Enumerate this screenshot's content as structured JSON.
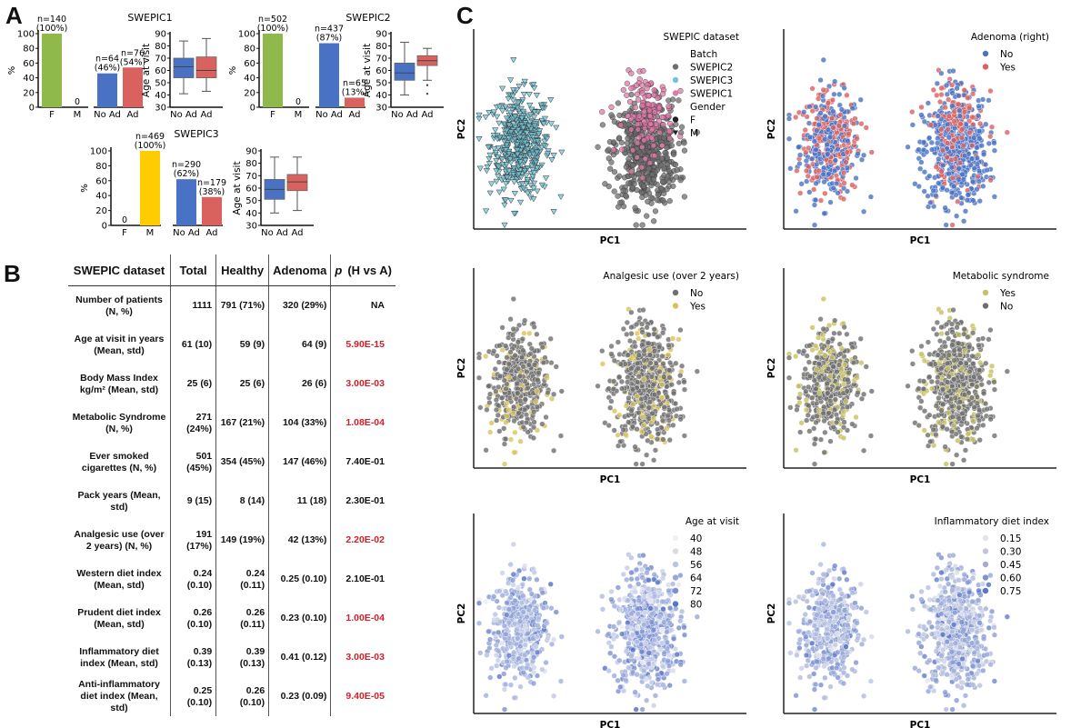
{
  "panels": {
    "A": "A",
    "B": "B",
    "C": "C"
  },
  "colors": {
    "F": "#8fb94b",
    "M": "#ffcc00",
    "NoAd": "#4a72c4",
    "Ad": "#d9625f",
    "sig_p": "#d0202a",
    "SWEPIC2": "#6e6e6e",
    "SWEPIC3": "#72c5d8",
    "SWEPIC1": "#e07aa8",
    "adenoma_no": "#4a72c4",
    "adenoma_yes": "#d9625f",
    "analgesic_no": "#6e6e6e",
    "analgesic_yes": "#d8c35a",
    "metabolic_yes": "#c8c060",
    "metabolic_no": "#6e6e6e"
  },
  "chart_data": [
    {
      "id": "A-SWEPIC1",
      "type": "bar",
      "title": "SWEPIC1",
      "ylabel": "%",
      "ylim": [
        0,
        100
      ],
      "yticks": [
        "0",
        "20",
        "40",
        "60",
        "80",
        "100"
      ],
      "gender": {
        "categories": [
          "F",
          "M"
        ],
        "values": [
          100,
          0
        ],
        "labels": [
          "n=140\n(100%)",
          "0"
        ]
      },
      "adenoma": {
        "categories": [
          "No Ad",
          "Ad"
        ],
        "values": [
          46,
          54
        ],
        "labels": [
          "n=64\n(46%)",
          "n=76\n(54%)"
        ]
      },
      "box": {
        "type": "box",
        "ylabel": "Age at visit",
        "ylim": [
          30,
          90
        ],
        "yticks": [
          "30",
          "40",
          "50",
          "60",
          "70",
          "80",
          "90"
        ],
        "categories": [
          "No Ad",
          "Ad"
        ],
        "stats": [
          {
            "whislo": 41,
            "q1": 54,
            "med": 63,
            "q3": 70,
            "whishi": 84,
            "outliers": []
          },
          {
            "whislo": 43,
            "q1": 54,
            "med": 60,
            "q3": 71,
            "whishi": 86,
            "outliers": []
          }
        ]
      }
    },
    {
      "id": "A-SWEPIC2",
      "type": "bar",
      "title": "SWEPIC2",
      "ylabel": "%",
      "ylim": [
        0,
        100
      ],
      "yticks": [
        "0",
        "20",
        "40",
        "60",
        "80",
        "100"
      ],
      "gender": {
        "categories": [
          "F",
          "M"
        ],
        "values": [
          100,
          0
        ],
        "labels": [
          "n=502\n(100%)",
          "0"
        ]
      },
      "adenoma": {
        "categories": [
          "No Ad",
          "Ad"
        ],
        "values": [
          87,
          13
        ],
        "labels": [
          "n=437\n(87%)",
          "n=65\n(13%)"
        ]
      },
      "box": {
        "type": "box",
        "ylabel": "Age at visit",
        "ylim": [
          30,
          90
        ],
        "yticks": [
          "30",
          "40",
          "50",
          "60",
          "70",
          "80",
          "90"
        ],
        "categories": [
          "No Ad",
          "Ad"
        ],
        "stats": [
          {
            "whislo": 40,
            "q1": 52,
            "med": 58,
            "q3": 66,
            "whishi": 83,
            "outliers": []
          },
          {
            "whislo": 52,
            "q1": 64,
            "med": 68,
            "q3": 72,
            "whishi": 78,
            "outliers": [
              48,
              41
            ]
          }
        ]
      }
    },
    {
      "id": "A-SWEPIC3",
      "type": "bar",
      "title": "SWEPIC3",
      "ylabel": "%",
      "ylim": [
        0,
        100
      ],
      "yticks": [
        "0",
        "20",
        "40",
        "60",
        "80",
        "100"
      ],
      "gender": {
        "categories": [
          "F",
          "M"
        ],
        "values": [
          0,
          100
        ],
        "labels": [
          "0",
          "n=469\n(100%)"
        ]
      },
      "adenoma": {
        "categories": [
          "No Ad",
          "Ad"
        ],
        "values": [
          62,
          38
        ],
        "labels": [
          "n=290\n(62%)",
          "n=179\n(38%)"
        ]
      },
      "box": {
        "type": "box",
        "ylabel": "Age at visit",
        "ylim": [
          30,
          90
        ],
        "yticks": [
          "30",
          "40",
          "50",
          "60",
          "70",
          "80",
          "90"
        ],
        "categories": [
          "No Ad",
          "Ad"
        ],
        "stats": [
          {
            "whislo": 40,
            "q1": 51,
            "med": 59,
            "q3": 67,
            "whishi": 85,
            "outliers": []
          },
          {
            "whislo": 42,
            "q1": 58,
            "med": 65,
            "q3": 71,
            "whishi": 85,
            "outliers": []
          }
        ]
      }
    },
    {
      "id": "B-table",
      "type": "table",
      "columns": [
        "SWEPIC dataset",
        "Total",
        "Healthy",
        "Adenoma",
        "(H vs A)"
      ],
      "p_symbol": "p",
      "rows": [
        {
          "label": "Number of patients (N, %)",
          "total": "1111",
          "healthy": "791 (71%)",
          "adenoma": "320 (29%)",
          "p": "NA",
          "significant": false
        },
        {
          "label": "Age at visit in years (Mean, std)",
          "total": "61 (10)",
          "healthy": "59 (9)",
          "adenoma": "64 (9)",
          "p": "5.90E-15",
          "significant": true
        },
        {
          "label": "Body Mass Index kg/m² (Mean, std)",
          "total": "25 (6)",
          "healthy": "25 (6)",
          "adenoma": "26 (6)",
          "p": "3.00E-03",
          "significant": true
        },
        {
          "label": "Metabolic Syndrome (N, %)",
          "total": "271 (24%)",
          "healthy": "167 (21%)",
          "adenoma": "104 (33%)",
          "p": "1.08E-04",
          "significant": true
        },
        {
          "label": "Ever smoked cigarettes (N, %)",
          "total": "501 (45%)",
          "healthy": "354 (45%)",
          "adenoma": "147 (46%)",
          "p": "7.40E-01",
          "significant": false
        },
        {
          "label": "Pack years (Mean, std)",
          "total": "9 (15)",
          "healthy": "8 (14)",
          "adenoma": "11 (18)",
          "p": "2.30E-01",
          "significant": false
        },
        {
          "label": "Analgesic use (over 2 years) (N, %)",
          "total": "191 (17%)",
          "healthy": "149 (19%)",
          "adenoma": "42 (13%)",
          "p": "2.20E-02",
          "significant": true
        },
        {
          "label": "Western diet index (Mean, std)",
          "total": "0.24 (0.10)",
          "healthy": "0.24 (0.11)",
          "adenoma": "0.25 (0.10)",
          "p": "2.10E-01",
          "significant": false
        },
        {
          "label": "Prudent diet index (Mean, std)",
          "total": "0.26 (0.10)",
          "healthy": "0.26 (0.11)",
          "adenoma": "0.23 (0.10)",
          "p": "1.00E-04",
          "significant": true
        },
        {
          "label": "Inflammatory diet index (Mean, std)",
          "total": "0.39 (0.13)",
          "healthy": "0.39 (0.13)",
          "adenoma": "0.41 (0.12)",
          "p": "3.00E-03",
          "significant": true
        },
        {
          "label": "Anti-inflammatory diet index (Mean, std)",
          "total": "0.25 (0.10)",
          "healthy": "0.26 (0.10)",
          "adenoma": "0.23 (0.09)",
          "p": "9.40E-05",
          "significant": true
        }
      ]
    },
    {
      "id": "C-scatter",
      "type": "scatter",
      "xlabel": "PC1",
      "ylabel": "PC2",
      "grid": false,
      "note": "Six PCA scatter plots of the same samples: two clusters (left cluster = SWEPIC3, right cluster = SWEPIC1 + SWEPIC2), coloured by different variables.",
      "plots": [
        {
          "legend_title": "SWEPIC dataset",
          "legend_position": "top-right",
          "legend": [
            {
              "type": "header",
              "label": "Batch"
            },
            {
              "label": "SWEPIC2",
              "color": "#6e6e6e",
              "marker": "circle"
            },
            {
              "label": "SWEPIC3",
              "color": "#72c5d8",
              "marker": "circle"
            },
            {
              "label": "SWEPIC1",
              "color": "#e07aa8",
              "marker": "circle"
            },
            {
              "type": "header",
              "label": "Gender"
            },
            {
              "label": "F",
              "color": "#222222",
              "marker": "circle"
            },
            {
              "label": "M",
              "color": "#222222",
              "marker": "triangle-down"
            }
          ],
          "colorby": "batch"
        },
        {
          "legend_title": "Adenoma (right)",
          "legend_position": "top-right",
          "legend": [
            {
              "label": "No",
              "color": "#4a72c4",
              "marker": "circle"
            },
            {
              "label": "Yes",
              "color": "#d9625f",
              "marker": "circle"
            }
          ],
          "colorby": "adenoma"
        },
        {
          "legend_title": "Analgesic use (over 2 years)",
          "legend_position": "top-right",
          "legend": [
            {
              "label": "No",
              "color": "#6e6e6e",
              "marker": "circle"
            },
            {
              "label": "Yes",
              "color": "#d8c35a",
              "marker": "circle"
            }
          ],
          "colorby": "analgesic"
        },
        {
          "legend_title": "Metabolic syndrome",
          "legend_position": "top-right",
          "legend": [
            {
              "label": "Yes",
              "color": "#c8c060",
              "marker": "circle"
            },
            {
              "label": "No",
              "color": "#6e6e6e",
              "marker": "circle"
            }
          ],
          "colorby": "metabolic"
        },
        {
          "legend_title": "Age at visit",
          "legend_position": "top-right",
          "legend": [
            {
              "label": "40",
              "color": "#f1f1f4",
              "marker": "circle"
            },
            {
              "label": "48",
              "color": "#d9dbe4",
              "marker": "circle"
            },
            {
              "label": "56",
              "color": "#bcc4e2",
              "marker": "circle"
            },
            {
              "label": "64",
              "color": "#9aa7d9",
              "marker": "circle"
            },
            {
              "label": "72",
              "color": "#7b8fd2",
              "marker": "circle"
            },
            {
              "label": "80",
              "color": "#5a74c6",
              "marker": "circle"
            }
          ],
          "colorby": "age"
        },
        {
          "legend_title": "Inflammatory diet index",
          "legend_position": "top-right",
          "legend": [
            {
              "label": "0.15",
              "color": "#e3e4ea",
              "marker": "circle"
            },
            {
              "label": "0.30",
              "color": "#c2c5dc",
              "marker": "circle"
            },
            {
              "label": "0.45",
              "color": "#a8a8d8",
              "marker": "circle"
            },
            {
              "label": "0.60",
              "color": "#7c95cc",
              "marker": "circle"
            },
            {
              "label": "0.75",
              "color": "#5a74c6",
              "marker": "circle"
            }
          ],
          "colorby": "inflam"
        }
      ]
    }
  ]
}
